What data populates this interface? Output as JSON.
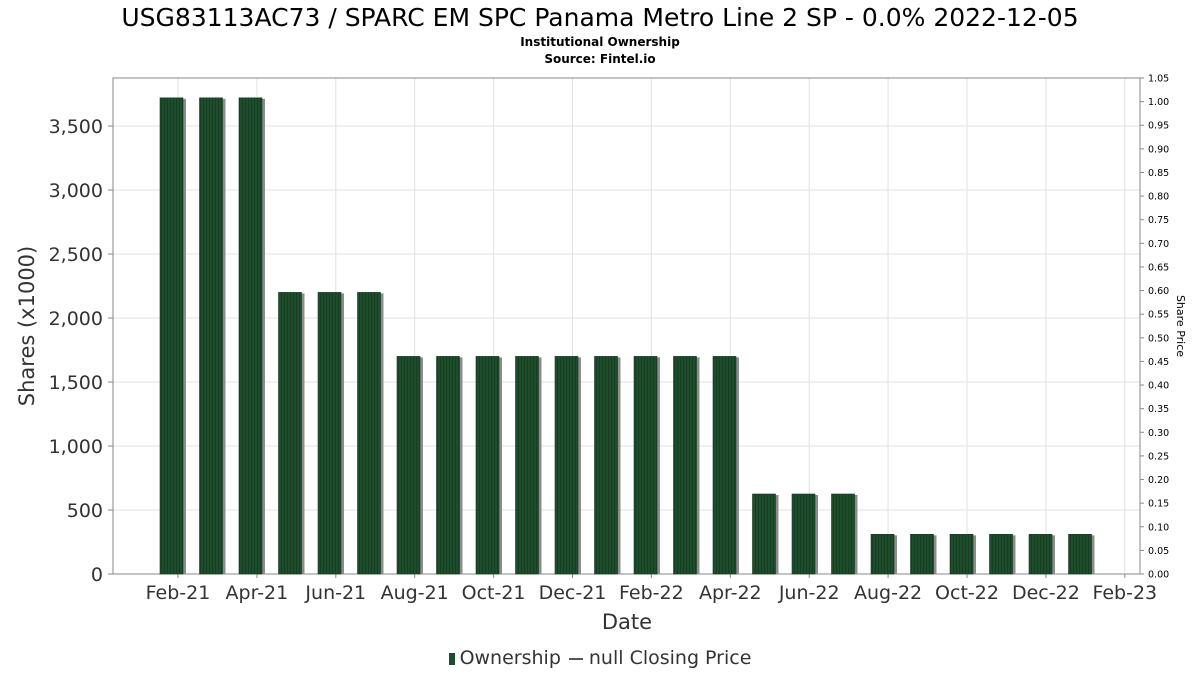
{
  "title": "USG83113AC73 / SPARC EM SPC Panama Metro Line 2 SP - 0.0% 2022-12-05",
  "subtitle": "Institutional Ownership",
  "source": "Source: Fintel.io",
  "legend": {
    "ownership_label": "Ownership",
    "price_label": "null Closing Price"
  },
  "colors": {
    "bar": "#1e4d2b",
    "bar_shadow": "#8c8c8c",
    "grid": "#e2e2e2",
    "axis": "#888888"
  },
  "chart_data": {
    "type": "bar",
    "xlabel": "Date",
    "ylabel": "Shares (x1000)",
    "y2label": "Share Price",
    "ylim": [
      0,
      3875
    ],
    "y2lim": [
      0,
      1.05
    ],
    "grid": true,
    "legend_position": "bottom",
    "x_ticks": [
      "Feb-21",
      "Apr-21",
      "Jun-21",
      "Aug-21",
      "Oct-21",
      "Dec-21",
      "Feb-22",
      "Apr-22",
      "Jun-22",
      "Aug-22",
      "Oct-22",
      "Dec-22",
      "Feb-23"
    ],
    "y_ticks": [
      "0",
      "500",
      "1,000",
      "1,500",
      "2,000",
      "2,500",
      "3,000",
      "3,500"
    ],
    "y2_ticks": [
      "0.00",
      "0.05",
      "0.10",
      "0.15",
      "0.20",
      "0.25",
      "0.30",
      "0.35",
      "0.40",
      "0.45",
      "0.50",
      "0.55",
      "0.60",
      "0.65",
      "0.70",
      "0.75",
      "0.80",
      "0.85",
      "0.90",
      "0.95",
      "1.00",
      "1.05"
    ],
    "series": [
      {
        "name": "Ownership",
        "values": [
          3720,
          3720,
          3720,
          2200,
          2200,
          2200,
          1700,
          1700,
          1700,
          1700,
          1700,
          1700,
          1700,
          1700,
          1700,
          625,
          625,
          625,
          310,
          310,
          310,
          310,
          310,
          310
        ]
      }
    ]
  }
}
